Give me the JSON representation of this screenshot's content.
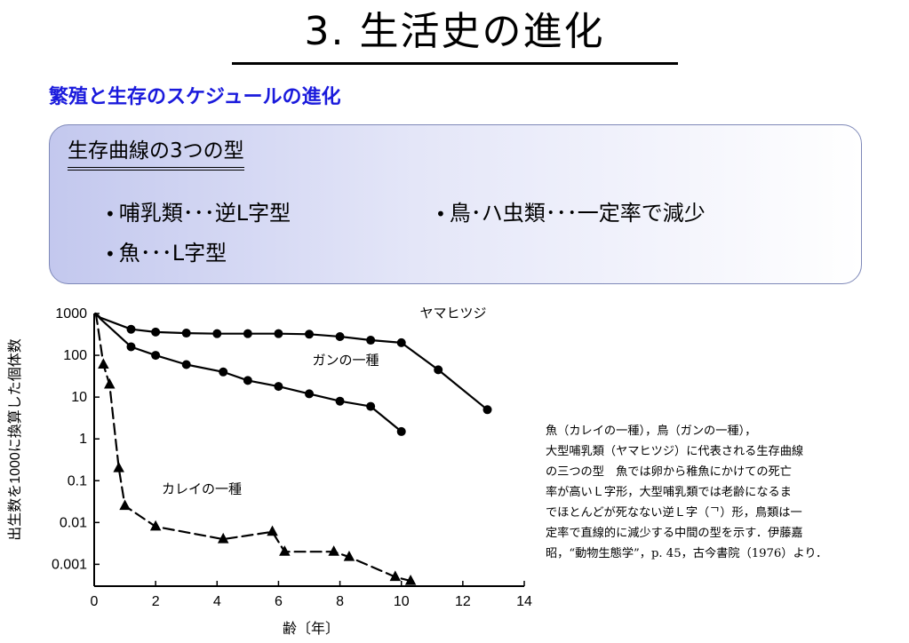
{
  "slide": {
    "title": "3. 生活史の進化",
    "subtitle": "繁殖と生存のスケジュールの進化"
  },
  "box": {
    "heading": "生存曲線の3つの型",
    "bullets": [
      "哺乳類･･･逆L字型",
      "鳥･ハ虫類･･･一定率で減少",
      "魚･･･L字型"
    ]
  },
  "caption": {
    "text": "魚（カレイの一種），鳥（ガンの一種），\n大型哺乳類（ヤマヒツジ）に代表される生存曲線\nの三つの型　魚では卵から稚魚にかけての死亡\n率が高いＬ字形，大型哺乳類では老齢になるま\nでほとんどが死なない逆Ｌ字（ᄀ）形，鳥類は一\n定率で直線的に減少する中間の型を示す．伊藤嘉\n昭，“動物生態学”，p. 45，古今書院（1976）より．"
  },
  "chart_data": {
    "type": "line",
    "xlabel": "齢〔年〕",
    "ylabel": "出生数を1000に換算した個体数",
    "x_ticks": [
      "0",
      "2",
      "4",
      "6",
      "8",
      "10",
      "12",
      "14"
    ],
    "y_ticks": [
      "1000",
      "100",
      "10",
      "1",
      "0.1",
      "0.01",
      "0.001"
    ],
    "xlim": [
      0,
      14
    ],
    "ylim": [
      0.0003,
      1000
    ],
    "y_scale": "log",
    "series": [
      {
        "name": "ヤマヒツジ",
        "marker": "circle",
        "line": "solid",
        "x": [
          0.2,
          1.2,
          2.0,
          3.0,
          4.0,
          5.0,
          6.0,
          7.0,
          8.0,
          9.0,
          10.0,
          11.2,
          12.8
        ],
        "y": [
          800,
          420,
          360,
          340,
          330,
          330,
          330,
          320,
          280,
          230,
          200,
          45,
          5
        ]
      },
      {
        "name": "ガンの一種",
        "marker": "circle",
        "line": "solid",
        "x": [
          0.2,
          1.2,
          2.0,
          3.0,
          4.2,
          5.0,
          6.0,
          7.0,
          8.0,
          9.0,
          10.0
        ],
        "y": [
          750,
          160,
          100,
          60,
          40,
          25,
          18,
          12,
          8,
          6,
          1.5
        ]
      },
      {
        "name": "カレイの一種",
        "marker": "triangle",
        "line": "dashed",
        "x": [
          0.1,
          0.3,
          0.5,
          0.8,
          1.0,
          2.0,
          4.2,
          5.8,
          6.2,
          7.8,
          8.3,
          9.8,
          10.3
        ],
        "y": [
          600,
          60,
          20,
          0.2,
          0.025,
          0.008,
          0.004,
          0.006,
          0.002,
          0.002,
          0.0015,
          0.0005,
          0.0004
        ]
      }
    ]
  }
}
